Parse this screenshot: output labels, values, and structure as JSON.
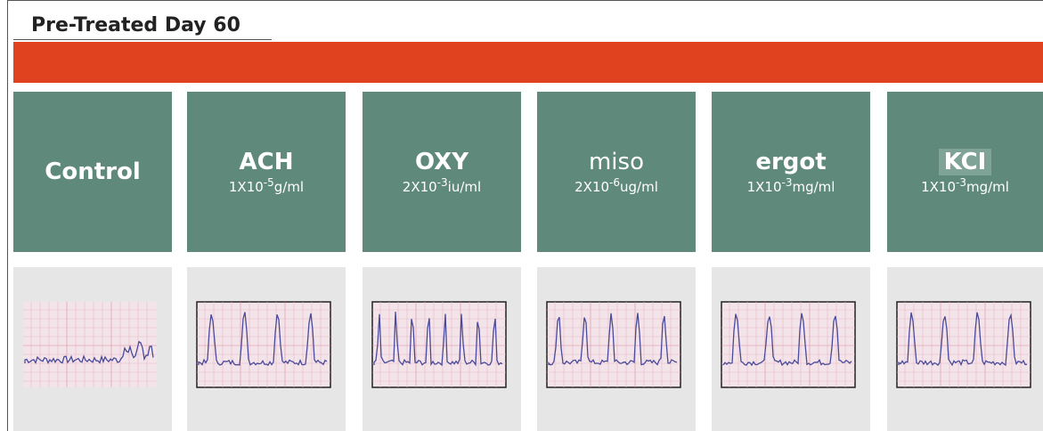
{
  "title": "Pre-Treated Day 60",
  "panels": [
    {
      "name": "Control"
    },
    {
      "name": "ACH",
      "conc": {
        "base": "1X10",
        "exp": "-5",
        "unit": "g/ml"
      }
    },
    {
      "name": "OXY",
      "conc": {
        "base": "2X10",
        "exp": "-3",
        "unit": "iu/ml"
      }
    },
    {
      "name": "miso",
      "conc": {
        "base": "2X10",
        "exp": "-6",
        "unit": "ug/ml"
      }
    },
    {
      "name": "ergot",
      "conc": {
        "base": "1X10",
        "exp": "-3",
        "unit": "mg/ml"
      }
    },
    {
      "name": "KCI",
      "conc": {
        "base": "1X10",
        "exp": "-3",
        "unit": "mg/ml"
      }
    }
  ]
}
